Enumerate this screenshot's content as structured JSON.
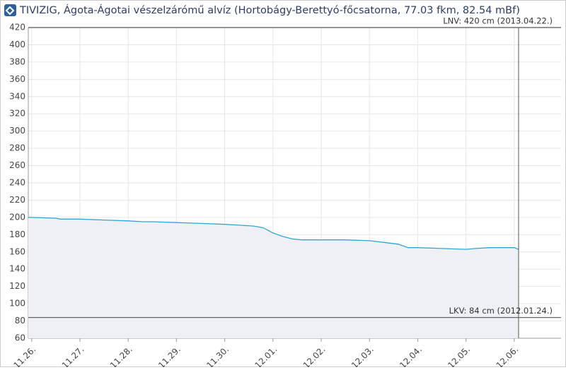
{
  "chart_data": {
    "type": "line",
    "title": "TIVIZIG, Ágota-Ágotai vészelzárómű alvíz (Hortobágy-Berettyó-főcsatorna, 77.03 fkm, 82.54 mBf)",
    "x": [
      -0.07,
      0,
      0.5,
      0.6,
      1,
      1.5,
      2,
      2.3,
      2.5,
      3,
      3.5,
      4,
      4.3,
      4.6,
      4.8,
      5,
      5.2,
      5.4,
      5.6,
      6,
      6.5,
      7,
      7.3,
      7.6,
      7.8,
      8,
      8.5,
      9,
      9.2,
      9.5,
      10,
      10.09
    ],
    "series": [
      {
        "color": "#2aa6d6",
        "fill": "#eef0f6",
        "values": [
          200,
          200,
          199,
          198,
          198,
          197,
          196,
          195,
          195,
          194,
          193,
          192,
          191,
          190,
          188,
          182,
          178,
          175,
          174,
          174,
          174,
          173,
          171,
          169,
          165,
          165,
          164,
          163,
          164,
          165,
          165,
          163
        ]
      }
    ],
    "xlim": [
      -0.07,
      10.97
    ],
    "xticks": [
      {
        "value": 0,
        "label": "11.26."
      },
      {
        "value": 1,
        "label": "11.27."
      },
      {
        "value": 2,
        "label": "11.28."
      },
      {
        "value": 3,
        "label": "11.29."
      },
      {
        "value": 4,
        "label": "11.30."
      },
      {
        "value": 5,
        "label": "12.01."
      },
      {
        "value": 6,
        "label": "12.02."
      },
      {
        "value": 7,
        "label": "12.03."
      },
      {
        "value": 8,
        "label": "12.04."
      },
      {
        "value": 9,
        "label": "12.05."
      },
      {
        "value": 10,
        "label": "12.06."
      }
    ],
    "ylim": [
      60,
      420
    ],
    "yticks": [
      60,
      80,
      100,
      120,
      140,
      160,
      180,
      200,
      220,
      240,
      260,
      280,
      300,
      320,
      340,
      360,
      380,
      400,
      420
    ],
    "grid": true,
    "thresholds": [
      {
        "value": 420,
        "label": "LNV: 420 cm (2013.04.22.)"
      },
      {
        "value": 84,
        "label": "LKV: 84 cm (2012.01.24.)"
      }
    ]
  }
}
